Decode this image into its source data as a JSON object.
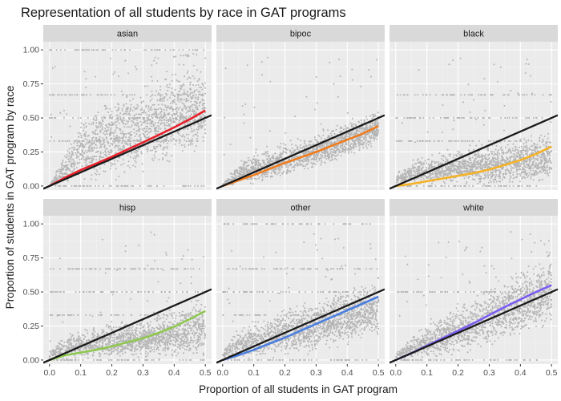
{
  "chart_data": {
    "type": "scatter",
    "title": "Representation of all students by race in GAT programs",
    "xlabel": "Proportion of all students in GAT program",
    "ylabel": "Proportion of students in GAT program by race",
    "xlim": [
      -0.02,
      0.52
    ],
    "ylim": [
      -0.03,
      1.06
    ],
    "x_ticks": [
      0.0,
      0.1,
      0.2,
      0.3,
      0.4,
      0.5
    ],
    "x_tick_labels": [
      "0.0",
      "0.1",
      "0.2",
      "0.3",
      "0.4",
      "0.5"
    ],
    "y_ticks": [
      0.0,
      0.25,
      0.5,
      0.75,
      1.0
    ],
    "y_tick_labels": [
      "0.00",
      "0.25",
      "0.50",
      "0.75",
      "1.00"
    ],
    "grid": true,
    "reference_line": {
      "description": "y = x",
      "color": "#1a1a1a",
      "points": [
        [
          -0.02,
          -0.02
        ],
        [
          0.52,
          0.52
        ]
      ]
    },
    "point_color": "#b4b4b4",
    "panel_background": "#ebebeb",
    "strip_background": "#d9d9d9",
    "panels": [
      {
        "label": "asian",
        "trend_color": "#e8202a",
        "trend": {
          "x": [
            0.0,
            0.05,
            0.1,
            0.15,
            0.2,
            0.25,
            0.3,
            0.35,
            0.4,
            0.45,
            0.5
          ],
          "y": [
            0.0,
            0.062,
            0.118,
            0.165,
            0.215,
            0.268,
            0.32,
            0.375,
            0.43,
            0.49,
            0.555
          ]
        },
        "point_bands": [
          [
            0.0,
            0.0
          ],
          [
            0.05,
            0.3
          ],
          [
            0.1,
            0.55
          ],
          [
            0.2,
            0.75
          ],
          [
            0.3,
            0.85
          ],
          [
            0.4,
            0.95
          ],
          [
            0.5,
            1.0
          ]
        ],
        "point_floor": [
          [
            0.0,
            0.0
          ],
          [
            0.1,
            0.0
          ],
          [
            0.2,
            0.02
          ],
          [
            0.3,
            0.08
          ],
          [
            0.4,
            0.15
          ],
          [
            0.5,
            0.25
          ]
        ],
        "horizontal_bands": [
          0.0,
          0.33,
          0.5,
          0.67,
          1.0
        ]
      },
      {
        "label": "bipoc",
        "trend_color": "#f07c1e",
        "trend": {
          "x": [
            0.0,
            0.05,
            0.1,
            0.15,
            0.2,
            0.25,
            0.3,
            0.35,
            0.4,
            0.45,
            0.5
          ],
          "y": [
            0.0,
            0.04,
            0.08,
            0.125,
            0.17,
            0.21,
            0.25,
            0.295,
            0.34,
            0.385,
            0.44
          ]
        },
        "point_bands": [
          [
            0.0,
            0.02
          ],
          [
            0.05,
            0.2
          ],
          [
            0.1,
            0.28
          ],
          [
            0.2,
            0.35
          ],
          [
            0.3,
            0.42
          ],
          [
            0.4,
            0.5
          ],
          [
            0.5,
            0.58
          ]
        ],
        "point_floor": [
          [
            0.0,
            0.0
          ],
          [
            0.1,
            0.0
          ],
          [
            0.2,
            0.05
          ],
          [
            0.3,
            0.12
          ],
          [
            0.4,
            0.2
          ],
          [
            0.5,
            0.3
          ]
        ],
        "horizontal_bands": []
      },
      {
        "label": "black",
        "trend_color": "#f5b226",
        "trend": {
          "x": [
            0.0,
            0.05,
            0.1,
            0.15,
            0.2,
            0.25,
            0.3,
            0.35,
            0.4,
            0.45,
            0.5
          ],
          "y": [
            0.0,
            0.015,
            0.035,
            0.055,
            0.075,
            0.095,
            0.12,
            0.155,
            0.19,
            0.235,
            0.29
          ]
        },
        "point_bands": [
          [
            0.0,
            0.1
          ],
          [
            0.05,
            0.2
          ],
          [
            0.1,
            0.25
          ],
          [
            0.2,
            0.3
          ],
          [
            0.3,
            0.35
          ],
          [
            0.4,
            0.4
          ],
          [
            0.5,
            0.45
          ]
        ],
        "point_floor": [
          [
            0.0,
            0.0
          ],
          [
            0.5,
            0.0
          ]
        ],
        "horizontal_bands": [
          0.0,
          0.33,
          0.5,
          0.67
        ]
      },
      {
        "label": "hisp",
        "trend_color": "#8ec850",
        "trend": {
          "x": [
            0.0,
            0.05,
            0.1,
            0.15,
            0.2,
            0.25,
            0.3,
            0.35,
            0.4,
            0.45,
            0.5
          ],
          "y": [
            0.0,
            0.035,
            0.055,
            0.075,
            0.1,
            0.13,
            0.16,
            0.2,
            0.245,
            0.3,
            0.36
          ]
        },
        "point_bands": [
          [
            0.0,
            0.1
          ],
          [
            0.05,
            0.2
          ],
          [
            0.1,
            0.25
          ],
          [
            0.2,
            0.3
          ],
          [
            0.3,
            0.35
          ],
          [
            0.4,
            0.42
          ],
          [
            0.5,
            0.5
          ]
        ],
        "point_floor": [
          [
            0.0,
            0.0
          ],
          [
            0.5,
            0.0
          ]
        ],
        "horizontal_bands": [
          0.0,
          0.33,
          0.5,
          0.67
        ]
      },
      {
        "label": "other",
        "trend_color": "#4a7fe0",
        "trend": {
          "x": [
            0.0,
            0.05,
            0.1,
            0.15,
            0.2,
            0.25,
            0.3,
            0.35,
            0.4,
            0.45,
            0.5
          ],
          "y": [
            0.0,
            0.035,
            0.075,
            0.12,
            0.165,
            0.215,
            0.265,
            0.315,
            0.365,
            0.415,
            0.465
          ]
        },
        "point_bands": [
          [
            0.0,
            0.1
          ],
          [
            0.05,
            0.25
          ],
          [
            0.1,
            0.32
          ],
          [
            0.2,
            0.42
          ],
          [
            0.3,
            0.5
          ],
          [
            0.4,
            0.58
          ],
          [
            0.5,
            0.65
          ]
        ],
        "point_floor": [
          [
            0.0,
            0.0
          ],
          [
            0.2,
            0.0
          ],
          [
            0.3,
            0.05
          ],
          [
            0.4,
            0.1
          ],
          [
            0.5,
            0.15
          ]
        ],
        "horizontal_bands": [
          0.0,
          0.33,
          0.5,
          0.67,
          1.0
        ]
      },
      {
        "label": "white",
        "trend_color": "#7a5cf2",
        "trend": {
          "x": [
            0.0,
            0.05,
            0.1,
            0.15,
            0.2,
            0.25,
            0.3,
            0.35,
            0.4,
            0.45,
            0.5
          ],
          "y": [
            0.0,
            0.05,
            0.105,
            0.16,
            0.215,
            0.27,
            0.33,
            0.39,
            0.445,
            0.5,
            0.55
          ]
        },
        "point_bands": [
          [
            0.0,
            0.05
          ],
          [
            0.05,
            0.2
          ],
          [
            0.1,
            0.3
          ],
          [
            0.2,
            0.45
          ],
          [
            0.3,
            0.6
          ],
          [
            0.4,
            0.72
          ],
          [
            0.5,
            0.85
          ]
        ],
        "point_floor": [
          [
            0.0,
            0.0
          ],
          [
            0.1,
            0.0
          ],
          [
            0.2,
            0.02
          ],
          [
            0.3,
            0.08
          ],
          [
            0.4,
            0.15
          ],
          [
            0.5,
            0.25
          ]
        ],
        "horizontal_bands": [
          0.0,
          0.5
        ]
      }
    ]
  }
}
